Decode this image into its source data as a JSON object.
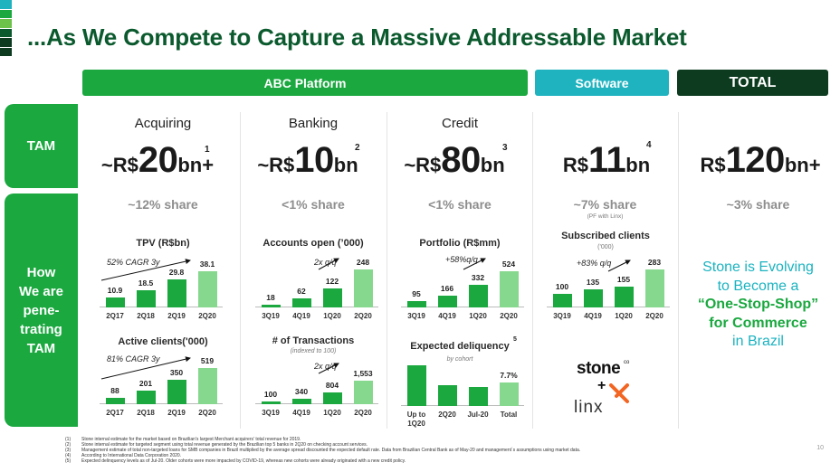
{
  "title": "...As We Compete to Capture a Massive Addressable Market",
  "headers": {
    "abc": "ABC Platform",
    "software": "Software",
    "total": "TOTAL"
  },
  "side": {
    "tam": "TAM",
    "how": "How We are pene- trating TAM"
  },
  "columns": [
    {
      "category": "Acquiring",
      "tam_prefix": "~R$",
      "tam_num": "20",
      "tam_suffix": "bn",
      "tam_plus": "+",
      "footnote": "1",
      "share": "~12% share"
    },
    {
      "category": "Banking",
      "tam_prefix": "~R$",
      "tam_num": "10",
      "tam_suffix": "bn",
      "tam_plus": "",
      "footnote": "2",
      "share": "<1% share"
    },
    {
      "category": "Credit",
      "tam_prefix": "~R$",
      "tam_num": "80",
      "tam_suffix": "bn",
      "tam_plus": "",
      "footnote": "3",
      "share": "<1% share"
    },
    {
      "category": "",
      "tam_prefix": "R$",
      "tam_num": "11",
      "tam_suffix": "bn",
      "tam_plus": "",
      "footnote": "4",
      "share": "~7% share",
      "share_note": "(PF with Linx)"
    },
    {
      "category": "",
      "tam_prefix": "R$",
      "tam_num": "120",
      "tam_suffix": "bn",
      "tam_plus": "+",
      "footnote": "",
      "share": "~3% share"
    }
  ],
  "chart_data": [
    {
      "type": "bar",
      "title": "TPV (R$bn)",
      "annotation": "52% CAGR 3y",
      "categories": [
        "2Q17",
        "2Q18",
        "2Q19",
        "2Q20"
      ],
      "values": [
        10.9,
        18.5,
        29.8,
        38.1
      ],
      "labels": [
        "10.9",
        "18.5",
        "29.8",
        "38.1"
      ]
    },
    {
      "type": "bar",
      "title": "Active clients('000)",
      "annotation": "81% CAGR 3y",
      "categories": [
        "2Q17",
        "2Q18",
        "2Q19",
        "2Q20"
      ],
      "values": [
        88,
        201,
        350,
        519
      ],
      "labels": [
        "88",
        "201",
        "350",
        "519"
      ]
    },
    {
      "type": "bar",
      "title": "Accounts open (’000)",
      "annotation": "2x q/q",
      "categories": [
        "3Q19",
        "4Q19",
        "1Q20",
        "2Q20"
      ],
      "values": [
        18,
        62,
        122,
        248
      ],
      "labels": [
        "18",
        "62",
        "122",
        "248"
      ]
    },
    {
      "type": "bar",
      "title": "# of Transactions",
      "subtitle": "(indexed to 100)",
      "annotation": "2x q/q",
      "categories": [
        "3Q19",
        "4Q19",
        "1Q20",
        "2Q20"
      ],
      "values": [
        100,
        340,
        804,
        1553
      ],
      "labels": [
        "100",
        "340",
        "804",
        "1,553"
      ]
    },
    {
      "type": "bar",
      "title": "Portfolio (R$mm)",
      "annotation": "+58%q/q",
      "categories": [
        "3Q19",
        "4Q19",
        "1Q20",
        "2Q20"
      ],
      "values": [
        95,
        166,
        332,
        524
      ],
      "labels": [
        "95",
        "166",
        "332",
        "524"
      ]
    },
    {
      "type": "bar",
      "title": "Expected deliquency",
      "title_footnote": "5",
      "subtitle": "by cohort",
      "categories": [
        "Up to 1Q20",
        "2Q20",
        "Jul-20",
        "Total"
      ],
      "values": [
        13.5,
        7.0,
        6.2,
        7.7
      ],
      "labels": [
        "",
        "",
        "",
        "7.7%"
      ]
    },
    {
      "type": "bar",
      "title": "Subscribed clients",
      "subtitle": "('000)",
      "annotation": "+83% q/q",
      "categories": [
        "3Q19",
        "4Q19",
        "1Q20",
        "2Q20"
      ],
      "values": [
        100,
        135,
        155,
        283
      ],
      "labels": [
        "100",
        "135",
        "155",
        "283"
      ]
    }
  ],
  "evolving": {
    "line1": "Stone is Evolving",
    "line2": "to Become a",
    "line3": "“One-Stop-Shop”",
    "line4": "for Commerce",
    "line5": "in Brazil"
  },
  "logos": {
    "stone": "stone",
    "stone_co": "co",
    "plus": "+",
    "linx": "linx"
  },
  "footnotes": [
    {
      "n": "(1)",
      "text": "Stone internal estimate for the market based on Brazilian’s largest Merchant acquirers’ total revenue for 2019."
    },
    {
      "n": "(2)",
      "text": "Stone internal estimate for targeted segment using total revenue generated by the Brazilian top 5 banks in 2Q20 on checking account services."
    },
    {
      "n": "(3)",
      "text": "Management estimate of total non-targeted loans for SMB companies in Brazil multiplied by the average spread discounted the expected default rate. Data from Brazilian Central Bank as of May-20 and management´s assumptions using market data."
    },
    {
      "n": "(4)",
      "text": "According to International Data Corporation 2020."
    },
    {
      "n": "(5)",
      "text": "Expected delinquency levels as of Jul-20. Older cohorts were more impacted by COVID-19, whereas new cohorts were already originated with a new credit policy."
    }
  ],
  "page_number": "10",
  "colors": {
    "green": "#1aa83f",
    "dark_green": "#0b5a2e",
    "teal": "#1fb3c0",
    "total_dark": "#0c3b1f",
    "share_grey": "#8e8e8e"
  }
}
